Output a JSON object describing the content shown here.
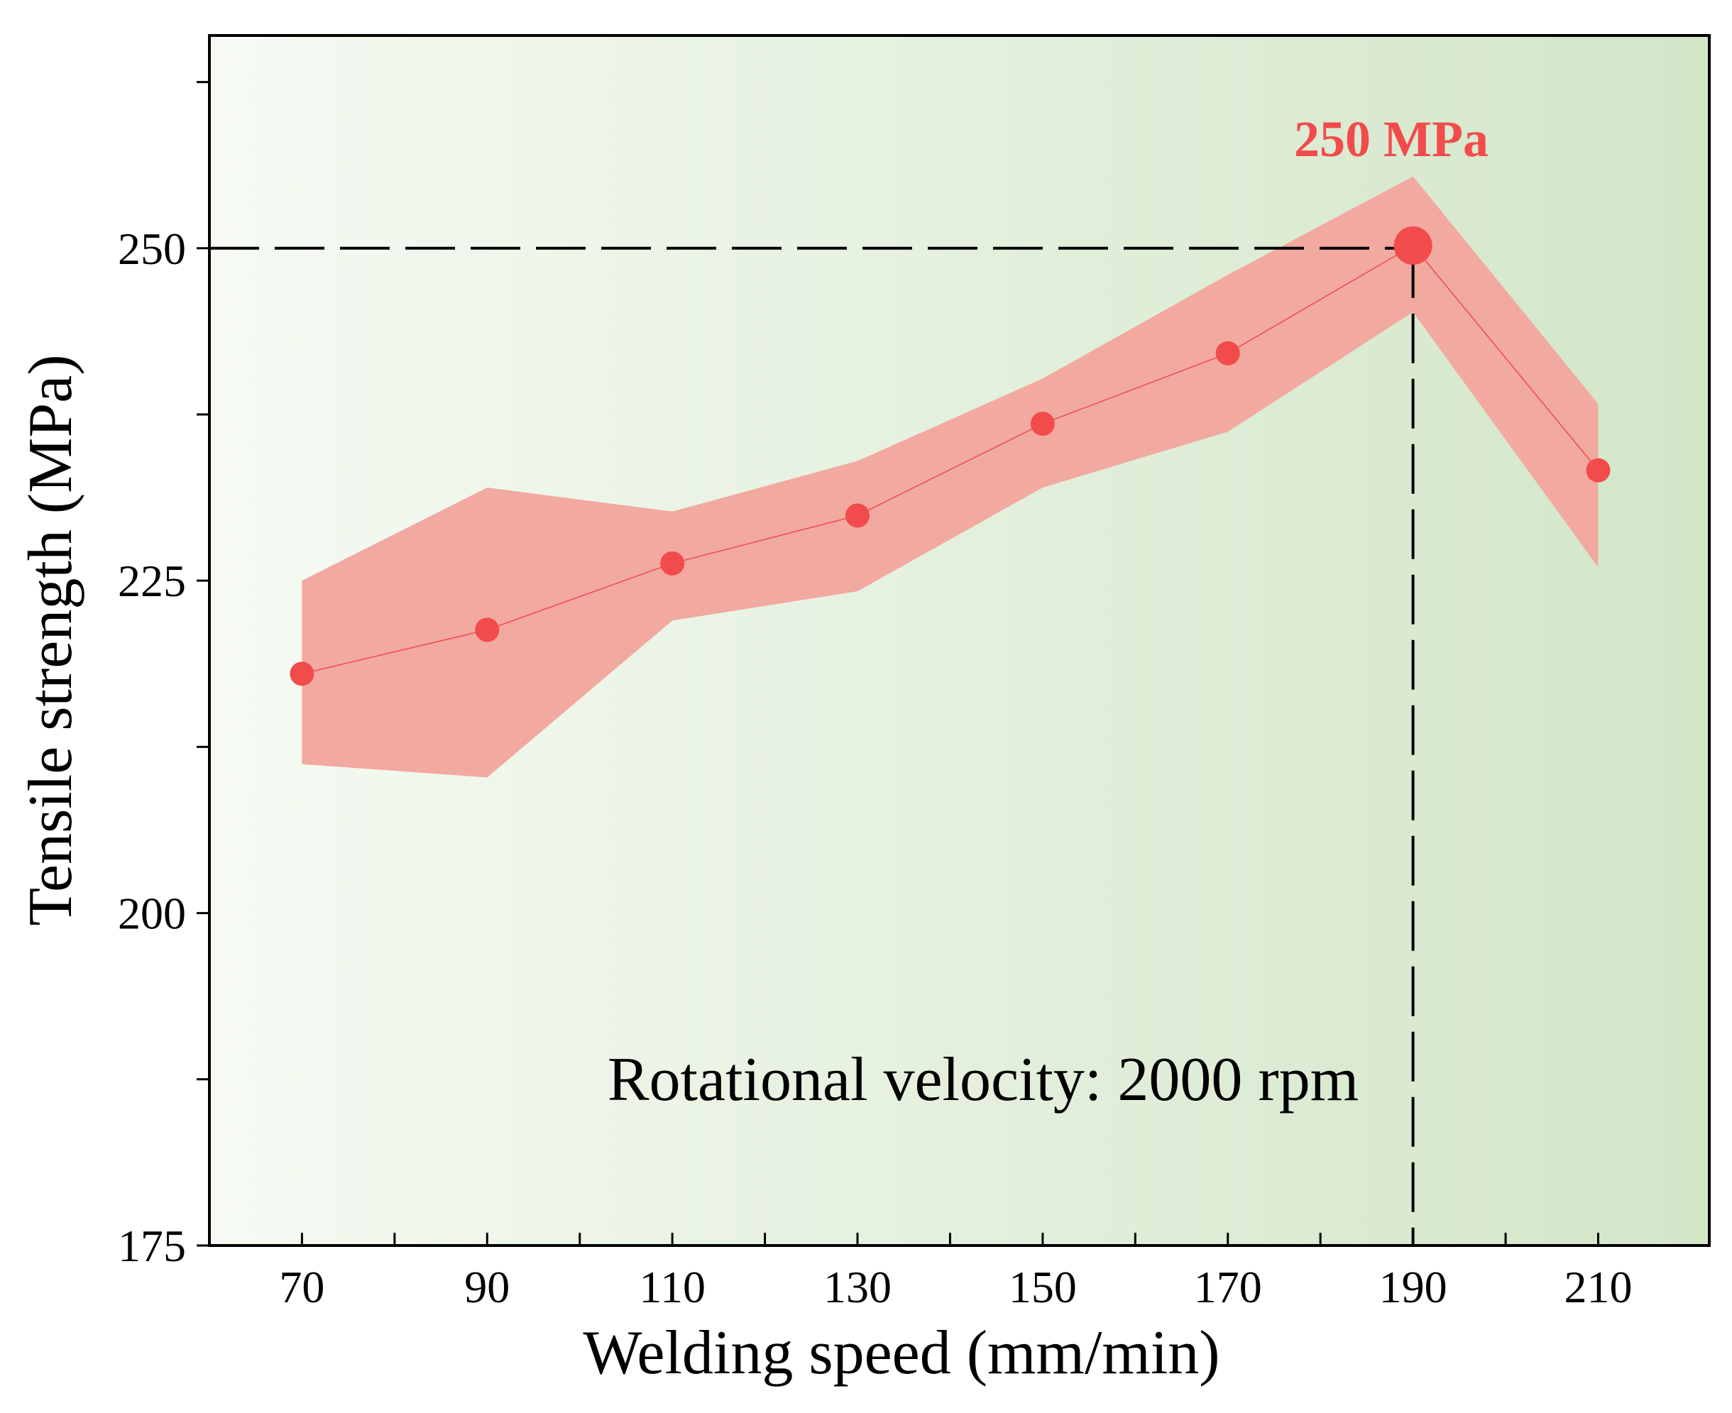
{
  "chart_data": {
    "type": "line",
    "title": "",
    "xlabel": "Welding speed (mm/min)",
    "ylabel": "Tensile strength (MPa)",
    "xlim": [
      60,
      222
    ],
    "ylim": [
      175,
      266
    ],
    "x_ticks": [
      70,
      90,
      110,
      130,
      150,
      170,
      190,
      210
    ],
    "x_minor_ticks": [
      80,
      100,
      120,
      140,
      160,
      180,
      200
    ],
    "y_ticks": [
      175,
      200,
      225,
      250
    ],
    "y_minor_ticks": [
      187.5,
      212.5,
      237.5,
      262.5
    ],
    "grid": false,
    "series": [
      {
        "name": "Tensile strength",
        "x": [
          70,
          90,
          110,
          130,
          150,
          170,
          190,
          210
        ],
        "values": [
          218.0,
          221.3,
          226.3,
          229.9,
          236.8,
          242.1,
          250.2,
          233.3
        ],
        "band_upper": [
          225.0,
          232.0,
          230.2,
          234.0,
          240.2,
          248.0,
          255.4,
          238.3
        ],
        "band_lower": [
          211.2,
          210.2,
          222.0,
          224.2,
          232.0,
          236.2,
          245.2,
          226.0
        ]
      }
    ],
    "highlight": {
      "x": 190,
      "y": 250,
      "label": "250 MPa"
    },
    "annotation": "Rotational velocity: 2000 rpm",
    "colors": {
      "series": "#f24b4b",
      "band": "#f2a9a0",
      "highlight_text": "#f24b4b",
      "bg_left": "#f6faf3",
      "bg_right": "#d2e6c8"
    }
  }
}
